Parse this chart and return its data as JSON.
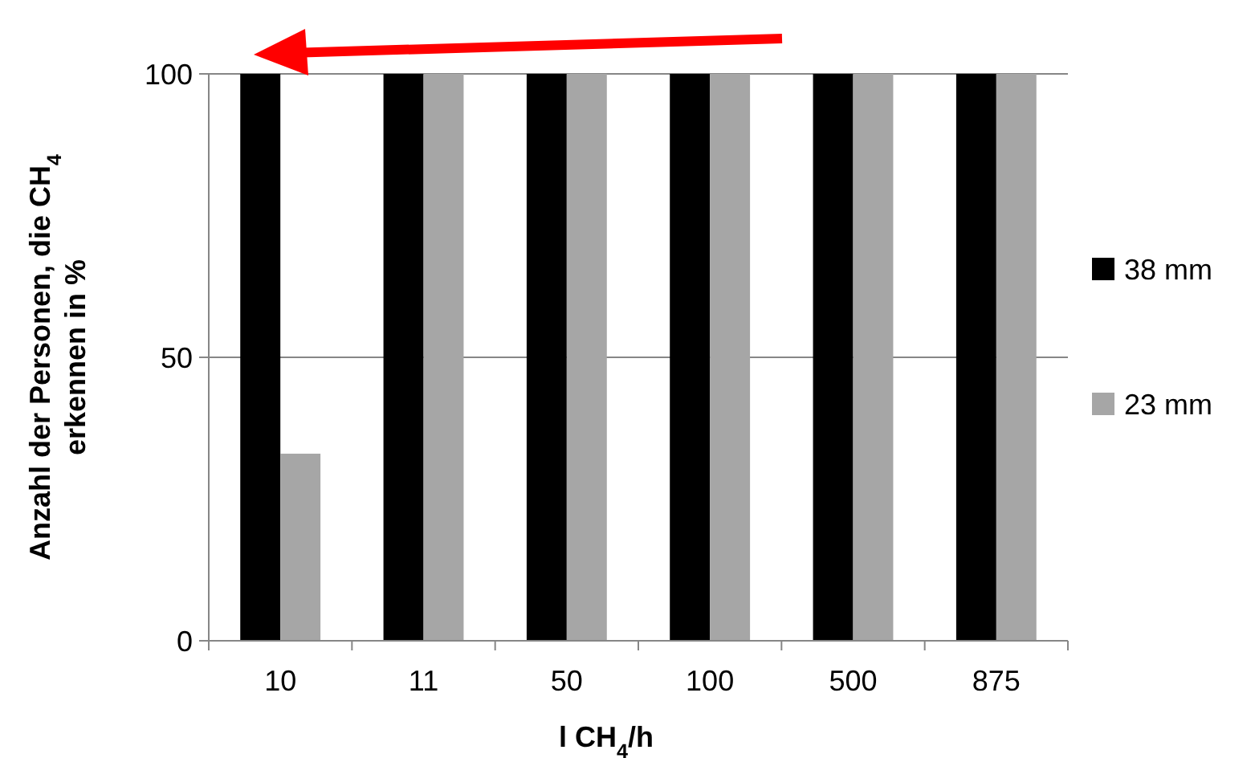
{
  "chart_data": {
    "type": "bar",
    "xlabel": "l CH$_{4}$/h",
    "ylabel": "Anzahl der Personen, die CH$_{4}$ erkennen in %",
    "categories": [
      "10",
      "11",
      "50",
      "100",
      "500",
      "875"
    ],
    "series": [
      {
        "name": "38 mm",
        "color": "#000000",
        "values": [
          100,
          100,
          100,
          100,
          100,
          100
        ]
      },
      {
        "name": "23 mm",
        "color": "#a6a6a6",
        "values": [
          33,
          100,
          100,
          100,
          100,
          100
        ]
      }
    ],
    "ylim": [
      0,
      100
    ],
    "yticks": [
      0,
      50,
      100
    ],
    "grid": "y",
    "legend": "right"
  }
}
